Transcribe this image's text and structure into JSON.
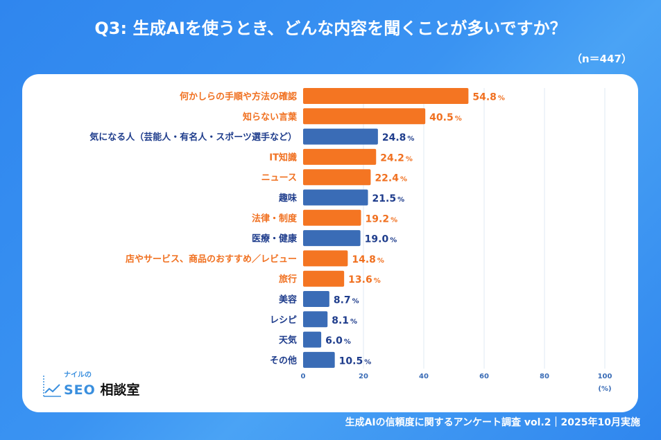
{
  "title": "Q3: 生成AIを使うとき、どんな内容を聞くことが多いですか？",
  "sample_size": "（n＝447）",
  "footer": "生成AIの信頼度に関するアンケート調査 vol.2｜2025年10月実施",
  "logo": {
    "small": "ナイルの",
    "seo": "SEO",
    "jp": "相談室"
  },
  "colors": {
    "highlight": "#f47522",
    "normal": "#3a6cb6",
    "highlight_text": "#f07020",
    "normal_text": "#1f3d8c",
    "axis_text": "#3a6cb6"
  },
  "chart_data": {
    "type": "bar",
    "orientation": "horizontal",
    "categories": [
      "何かしらの手順や方法の確認",
      "知らない言葉",
      "気になる人（芸能人・有名人・スポーツ選手など）",
      "IT知識",
      "ニュース",
      "趣味",
      "法律・制度",
      "医療・健康",
      "店やサービス、商品のおすすめ／レビュー",
      "旅行",
      "美容",
      "レシピ",
      "天気",
      "その他"
    ],
    "values": [
      54.8,
      40.5,
      24.8,
      24.2,
      22.4,
      21.5,
      19.2,
      19.0,
      14.8,
      13.6,
      8.7,
      8.1,
      6.0,
      10.5
    ],
    "value_labels": [
      "54.8",
      "40.5",
      "24.8",
      "24.2",
      "22.4",
      "21.5",
      "19.2",
      "19.0",
      "14.8",
      "13.6",
      "8.7",
      "8.1",
      "6.0",
      "10.5"
    ],
    "highlighted": [
      true,
      true,
      false,
      true,
      true,
      false,
      true,
      false,
      true,
      true,
      false,
      false,
      false,
      false
    ],
    "value_suffix": "%",
    "xlim": [
      0,
      100
    ],
    "xticks": [
      "0",
      "20",
      "40",
      "60",
      "80",
      "100"
    ],
    "xlabel": "(%)",
    "grid": true
  }
}
